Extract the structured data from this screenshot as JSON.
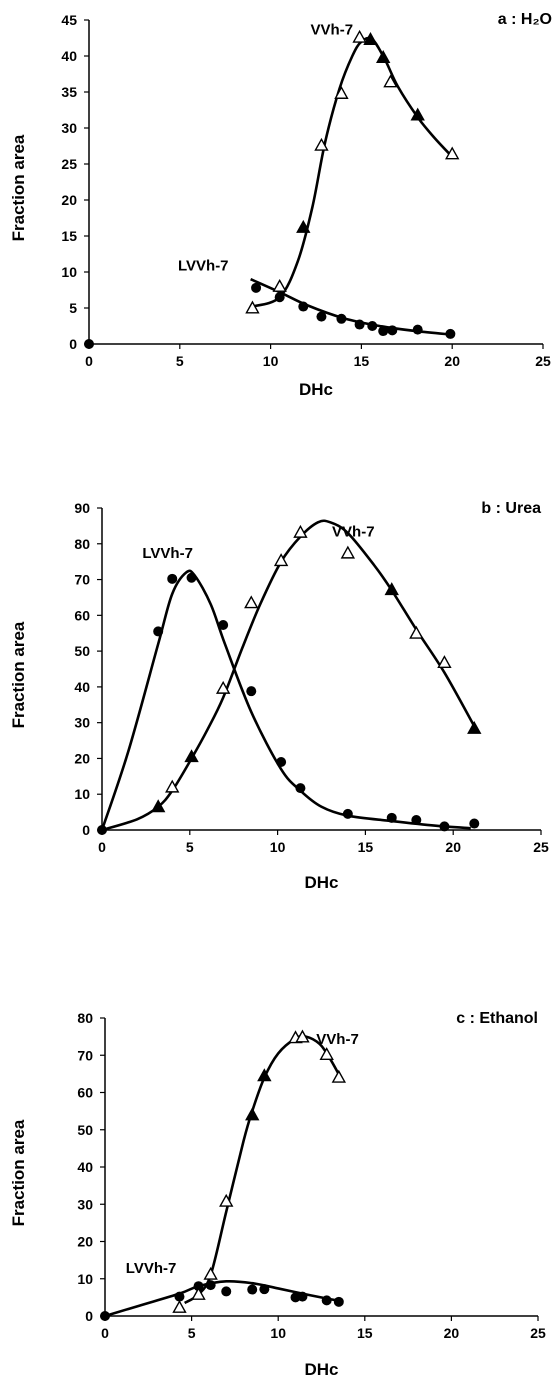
{
  "chart_data": [
    {
      "type": "scatter",
      "panel_label": "a : H₂O",
      "xlabel": "DHc",
      "ylabel": "Fraction area",
      "xlim": [
        0,
        25
      ],
      "ylim": [
        0,
        45
      ],
      "x_ticks": [
        "0",
        "5",
        "10",
        "15",
        "20",
        "25"
      ],
      "y_ticks": [
        "0",
        "5",
        "10",
        "15",
        "20",
        "25",
        "30",
        "35",
        "40",
        "45"
      ],
      "annotations": [
        {
          "text": "VVh-7",
          "x": 12.2,
          "y": 43
        },
        {
          "text": "LVVh-7",
          "x": 4.9,
          "y": 10.2
        }
      ],
      "series": [
        {
          "marker": "filled-circle",
          "points": [
            [
              0,
              0
            ],
            [
              9.2,
              7.8
            ],
            [
              10.5,
              6.5
            ],
            [
              11.8,
              5.2
            ],
            [
              12.8,
              3.8
            ],
            [
              13.9,
              3.5
            ],
            [
              14.9,
              2.7
            ],
            [
              15.6,
              2.5
            ],
            [
              16.2,
              1.8
            ],
            [
              16.7,
              1.9
            ],
            [
              18.1,
              2.0
            ],
            [
              19.9,
              1.4
            ]
          ]
        },
        {
          "marker": "filled-triangle",
          "points": [
            [
              11.8,
              16.2
            ],
            [
              15.5,
              42.3
            ],
            [
              16.2,
              39.8
            ],
            [
              18.1,
              31.8
            ]
          ]
        },
        {
          "marker": "open-triangle",
          "points": [
            [
              9.0,
              5.0
            ],
            [
              10.5,
              8.0
            ],
            [
              12.8,
              27.6
            ],
            [
              13.9,
              34.8
            ],
            [
              14.9,
              42.6
            ],
            [
              16.6,
              36.4
            ],
            [
              20.0,
              26.4
            ]
          ]
        }
      ],
      "curves": [
        {
          "points": [
            [
              9.0,
              5.2
            ],
            [
              10.5,
              6.5
            ],
            [
              11.5,
              11.5
            ],
            [
              12.3,
              19
            ],
            [
              13.0,
              28
            ],
            [
              13.8,
              35.5
            ],
            [
              14.5,
              40
            ],
            [
              15.0,
              42
            ],
            [
              15.6,
              42.3
            ],
            [
              16.3,
              39.5
            ],
            [
              17.0,
              35.8
            ],
            [
              18.1,
              31.5
            ],
            [
              19.0,
              28.7
            ],
            [
              20.0,
              26
            ]
          ]
        },
        {
          "points": [
            [
              8.9,
              9.0
            ],
            [
              10.5,
              7.2
            ],
            [
              12.0,
              5.4
            ],
            [
              14.0,
              3.6
            ],
            [
              16.0,
              2.5
            ],
            [
              18.0,
              1.8
            ],
            [
              20.0,
              1.3
            ]
          ]
        }
      ]
    },
    {
      "type": "scatter",
      "panel_label": "b : Urea",
      "xlabel": "DHc",
      "ylabel": "Fraction area",
      "xlim": [
        0,
        25
      ],
      "ylim": [
        0,
        90
      ],
      "x_ticks": [
        "0",
        "5",
        "10",
        "15",
        "20",
        "25"
      ],
      "y_ticks": [
        "0",
        "10",
        "20",
        "30",
        "40",
        "50",
        "60",
        "70",
        "80",
        "90"
      ],
      "annotations": [
        {
          "text": "LVVh-7",
          "x": 2.3,
          "y": 76
        },
        {
          "text": "VVh-7",
          "x": 13.1,
          "y": 82
        }
      ],
      "series": [
        {
          "marker": "filled-circle",
          "points": [
            [
              0,
              0
            ],
            [
              3.2,
              55.5
            ],
            [
              4.0,
              70.2
            ],
            [
              5.1,
              70.5
            ],
            [
              6.9,
              57.3
            ],
            [
              8.5,
              38.8
            ],
            [
              10.2,
              19.0
            ],
            [
              11.3,
              11.7
            ],
            [
              14.0,
              4.5
            ],
            [
              16.5,
              3.4
            ],
            [
              17.9,
              2.8
            ],
            [
              19.5,
              1.0
            ],
            [
              21.2,
              1.8
            ]
          ]
        },
        {
          "marker": "filled-triangle",
          "points": [
            [
              3.2,
              6.5
            ],
            [
              5.1,
              20.5
            ],
            [
              16.5,
              67.2
            ],
            [
              21.2,
              28.4
            ]
          ]
        },
        {
          "marker": "open-triangle",
          "points": [
            [
              4.0,
              12.0
            ],
            [
              6.9,
              39.6
            ],
            [
              8.5,
              63.5
            ],
            [
              10.2,
              75.3
            ],
            [
              11.3,
              83.2
            ],
            [
              14.0,
              77.4
            ],
            [
              17.9,
              55.0
            ],
            [
              19.5,
              46.8
            ]
          ]
        }
      ],
      "curves": [
        {
          "points": [
            [
              0,
              0
            ],
            [
              1.5,
              22
            ],
            [
              3.2,
              52
            ],
            [
              4.0,
              66
            ],
            [
              4.8,
              72
            ],
            [
              5.3,
              71
            ],
            [
              6.2,
              63
            ],
            [
              7.0,
              52
            ],
            [
              8.5,
              33
            ],
            [
              10.2,
              17
            ],
            [
              11.3,
              11
            ],
            [
              12.5,
              6.5
            ],
            [
              14.0,
              4
            ],
            [
              16.5,
              2.5
            ],
            [
              19.0,
              1.2
            ],
            [
              21.0,
              0.5
            ]
          ]
        },
        {
          "points": [
            [
              0,
              0
            ],
            [
              2.0,
              3
            ],
            [
              3.2,
              6.5
            ],
            [
              4.0,
              11
            ],
            [
              5.1,
              20
            ],
            [
              6.0,
              28
            ],
            [
              6.9,
              37
            ],
            [
              8.0,
              51
            ],
            [
              9.0,
              63
            ],
            [
              10.2,
              75
            ],
            [
              11.3,
              82
            ],
            [
              12.3,
              86
            ],
            [
              13.0,
              86
            ],
            [
              14.0,
              83
            ],
            [
              15.5,
              74
            ],
            [
              16.5,
              67
            ],
            [
              17.9,
              56
            ],
            [
              19.5,
              44
            ],
            [
              21.2,
              29
            ]
          ]
        }
      ]
    },
    {
      "type": "scatter",
      "panel_label": "c : Ethanol",
      "xlabel": "DHc",
      "ylabel": "Fraction area",
      "xlim": [
        0,
        25
      ],
      "ylim": [
        0,
        80
      ],
      "x_ticks": [
        "0",
        "5",
        "10",
        "15",
        "20",
        "25"
      ],
      "y_ticks": [
        "0",
        "10",
        "20",
        "30",
        "40",
        "50",
        "60",
        "70",
        "80"
      ],
      "annotations": [
        {
          "text": "VVh-7",
          "x": 12.2,
          "y": 73
        },
        {
          "text": "LVVh-7",
          "x": 1.2,
          "y": 11.5
        }
      ],
      "series": [
        {
          "marker": "filled-circle",
          "points": [
            [
              0,
              0
            ],
            [
              4.3,
              5.2
            ],
            [
              5.4,
              8.0
            ],
            [
              6.1,
              8.3
            ],
            [
              7.0,
              6.6
            ],
            [
              8.5,
              7.1
            ],
            [
              9.2,
              7.2
            ],
            [
              11.0,
              5.0
            ],
            [
              11.4,
              5.2
            ],
            [
              12.8,
              4.2
            ],
            [
              13.5,
              3.8
            ]
          ]
        },
        {
          "marker": "filled-triangle",
          "points": [
            [
              8.5,
              54.0
            ],
            [
              9.2,
              64.5
            ]
          ]
        },
        {
          "marker": "open-triangle",
          "points": [
            [
              4.3,
              2.3
            ],
            [
              5.4,
              5.8
            ],
            [
              6.1,
              11.2
            ],
            [
              7.0,
              30.8
            ],
            [
              11.0,
              74.7
            ],
            [
              11.4,
              74.9
            ],
            [
              12.8,
              70.2
            ],
            [
              13.5,
              64.1
            ]
          ]
        }
      ],
      "curves": [
        {
          "points": [
            [
              4.6,
              3.5
            ],
            [
              5.4,
              5.8
            ],
            [
              6.1,
              11
            ],
            [
              7.0,
              28
            ],
            [
              8.0,
              47
            ],
            [
              8.5,
              55
            ],
            [
              9.2,
              64
            ],
            [
              10.0,
              70.5
            ],
            [
              11.0,
              74.5
            ],
            [
              11.6,
              75
            ],
            [
              12.4,
              73
            ],
            [
              13.0,
              69
            ],
            [
              13.6,
              64
            ]
          ]
        },
        {
          "points": [
            [
              0,
              0
            ],
            [
              2.0,
              2.8
            ],
            [
              4.3,
              6.0
            ],
            [
              5.4,
              8.0
            ],
            [
              7.0,
              9.3
            ],
            [
              8.5,
              8.8
            ],
            [
              10.0,
              7.4
            ],
            [
              11.4,
              6.0
            ],
            [
              12.8,
              4.7
            ],
            [
              13.6,
              4.0
            ]
          ]
        }
      ]
    }
  ]
}
